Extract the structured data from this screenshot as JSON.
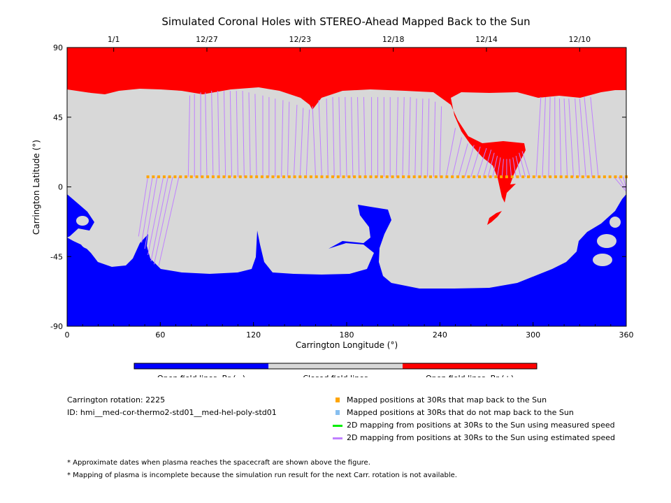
{
  "chart_data": {
    "type": "heatmap",
    "title": "Simulated Coronal Holes with STEREO-Ahead Mapped Back to the Sun",
    "xlabel": "Carrington Longitude (°)",
    "ylabel": "Carrington Latitude (°)",
    "xlim": [
      0,
      360
    ],
    "ylim": [
      -90,
      90
    ],
    "xticks": [
      0,
      60,
      120,
      180,
      240,
      300,
      360
    ],
    "yticks": [
      90,
      45,
      0,
      -45,
      -90
    ],
    "top_dates": [
      {
        "lon": 30,
        "label": "1/1"
      },
      {
        "lon": 90,
        "label": "12/27"
      },
      {
        "lon": 150,
        "label": "12/23"
      },
      {
        "lon": 210,
        "label": "12/18"
      },
      {
        "lon": 270,
        "label": "12/14"
      },
      {
        "lon": 330,
        "label": "12/10"
      }
    ],
    "mapped_positions": {
      "lat": 6.5,
      "lon_start": 52,
      "lon_end": 360,
      "lon_step": 3.5
    },
    "mapping_lines_estimated": [
      [
        52,
        46,
        -32
      ],
      [
        55,
        48,
        -36
      ],
      [
        58,
        50,
        -40
      ],
      [
        62,
        52,
        -44
      ],
      [
        65,
        54,
        -48
      ],
      [
        68,
        56,
        -50
      ],
      [
        72,
        59,
        -51
      ],
      [
        78,
        79,
        59
      ],
      [
        82,
        82,
        60
      ],
      [
        86,
        86,
        61
      ],
      [
        90,
        89,
        61
      ],
      [
        94,
        93,
        62
      ],
      [
        98,
        97,
        62
      ],
      [
        102,
        101,
        62
      ],
      [
        106,
        105,
        62
      ],
      [
        110,
        109,
        62
      ],
      [
        114,
        113,
        62
      ],
      [
        118,
        117,
        61
      ],
      [
        122,
        121,
        60
      ],
      [
        126,
        126,
        59
      ],
      [
        130,
        130,
        58
      ],
      [
        134,
        134,
        57
      ],
      [
        138,
        139,
        56
      ],
      [
        142,
        143,
        55
      ],
      [
        146,
        148,
        53
      ],
      [
        150,
        152,
        51
      ],
      [
        154,
        156,
        50
      ],
      [
        160,
        158,
        52
      ],
      [
        164,
        162,
        56
      ],
      [
        168,
        167,
        57
      ],
      [
        172,
        171,
        58
      ],
      [
        176,
        175,
        58
      ],
      [
        180,
        179,
        58
      ],
      [
        184,
        183,
        58
      ],
      [
        188,
        187,
        58
      ],
      [
        192,
        191,
        58
      ],
      [
        196,
        196,
        58
      ],
      [
        200,
        200,
        58
      ],
      [
        204,
        204,
        58
      ],
      [
        208,
        208,
        58
      ],
      [
        212,
        213,
        58
      ],
      [
        216,
        217,
        58
      ],
      [
        220,
        221,
        58
      ],
      [
        224,
        225,
        57
      ],
      [
        228,
        229,
        57
      ],
      [
        232,
        233,
        57
      ],
      [
        236,
        237,
        55
      ],
      [
        240,
        241,
        52
      ],
      [
        244,
        250,
        38
      ],
      [
        248,
        254,
        32
      ],
      [
        252,
        258,
        28
      ],
      [
        256,
        262,
        27
      ],
      [
        260,
        266,
        26
      ],
      [
        264,
        270,
        25
      ],
      [
        268,
        273,
        24
      ],
      [
        271,
        275,
        22
      ],
      [
        274,
        277,
        20
      ],
      [
        277,
        279,
        19
      ],
      [
        280,
        281,
        18
      ],
      [
        283,
        283,
        18
      ],
      [
        286,
        285,
        18
      ],
      [
        289,
        287,
        19
      ],
      [
        292,
        289,
        20
      ],
      [
        295,
        291,
        22
      ],
      [
        298,
        293,
        23
      ],
      [
        302,
        305,
        58
      ],
      [
        306,
        308,
        58
      ],
      [
        310,
        311,
        58
      ],
      [
        314,
        314,
        58
      ],
      [
        318,
        317,
        57
      ],
      [
        322,
        320,
        57
      ],
      [
        326,
        323,
        57
      ],
      [
        330,
        327,
        57
      ],
      [
        334,
        330,
        57
      ],
      [
        338,
        333,
        58
      ],
      [
        342,
        337,
        58
      ],
      [
        352,
        360,
        -3
      ],
      [
        355,
        360,
        -2
      ],
      [
        358,
        360,
        -1
      ]
    ],
    "colorbar": [
      {
        "label": "Open field lines, Br (−)",
        "color": "#0000ff"
      },
      {
        "label": "Closed field lines",
        "color": "#d8d8d8"
      },
      {
        "label": "Open field lines, Br (+)",
        "color": "#ff0000"
      }
    ]
  },
  "info": {
    "rotation": "Carrington rotation: 2225",
    "id": "ID: hmi__med-cor-thermo2-std01__med-hel-poly-std01"
  },
  "legend": [
    {
      "label": "Mapped positions at 30Rs that map back to the Sun",
      "color": "#ffa500",
      "kind": "square"
    },
    {
      "label": "Mapped positions at 30Rs that do not map back to the Sun",
      "color": "#87bff0",
      "kind": "square"
    },
    {
      "label": "2D mapping from positions at 30Rs to the Sun using measured speed",
      "color": "#00ee00",
      "kind": "line"
    },
    {
      "label": "2D mapping from positions at 30Rs to the Sun using estimated speed",
      "color": "#c080ff",
      "kind": "line"
    }
  ],
  "notes": [
    "* Approximate dates when plasma reaches the spacecraft are shown above the figure.",
    "* Mapping of plasma is incomplete because the simulation run result for the next Carr. rotation is not available."
  ]
}
